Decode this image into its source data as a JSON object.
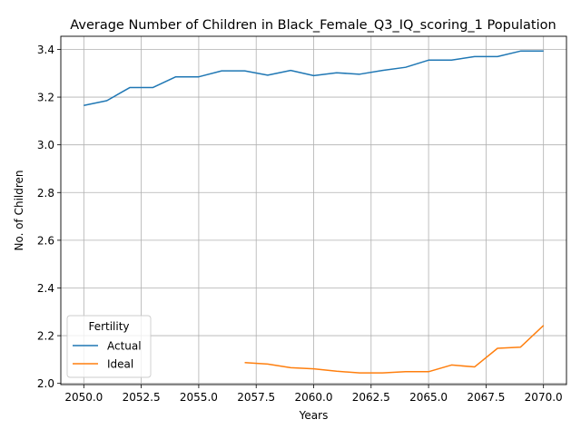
{
  "chart_data": {
    "type": "line",
    "title": "Average Number of Children in Black_Female_Q3_IQ_scoring_1 Population",
    "xlabel": "Years",
    "ylabel": "No. of Children",
    "xlim": [
      2049.0,
      2071.0
    ],
    "ylim": [
      1.995,
      3.455
    ],
    "xticks": [
      2050.0,
      2052.5,
      2055.0,
      2057.5,
      2060.0,
      2062.5,
      2065.0,
      2067.5,
      2070.0
    ],
    "xtick_labels": [
      "2050.0",
      "2052.5",
      "2055.0",
      "2057.5",
      "2060.0",
      "2062.5",
      "2065.0",
      "2067.5",
      "2070.0"
    ],
    "yticks": [
      2.0,
      2.2,
      2.4,
      2.6,
      2.8,
      3.0,
      3.2,
      3.4
    ],
    "ytick_labels": [
      "2.0",
      "2.2",
      "2.4",
      "2.6",
      "2.8",
      "3.0",
      "3.2",
      "3.4"
    ],
    "grid": true,
    "legend": {
      "title": "Fertility",
      "placement": "lower-left"
    },
    "series": [
      {
        "name": "Actual",
        "color": "#1f77b4",
        "x": [
          2050,
          2051,
          2052,
          2053,
          2054,
          2055,
          2056,
          2057,
          2058,
          2059,
          2060,
          2061,
          2062,
          2063,
          2064,
          2065,
          2066,
          2067,
          2068,
          2069,
          2070
        ],
        "values": [
          3.165,
          3.185,
          3.24,
          3.24,
          3.285,
          3.285,
          3.31,
          3.31,
          3.292,
          3.312,
          3.29,
          3.302,
          3.296,
          3.312,
          3.325,
          3.355,
          3.355,
          3.37,
          3.37,
          3.393,
          3.393
        ]
      },
      {
        "name": "Ideal",
        "color": "#ff7f0e",
        "x": [
          2057,
          2058,
          2059,
          2060,
          2061,
          2062,
          2063,
          2064,
          2065,
          2066,
          2067,
          2068,
          2069,
          2070
        ],
        "values": [
          2.087,
          2.081,
          2.066,
          2.061,
          2.051,
          2.044,
          2.044,
          2.049,
          2.049,
          2.077,
          2.069,
          2.147,
          2.152,
          2.243
        ]
      }
    ]
  }
}
